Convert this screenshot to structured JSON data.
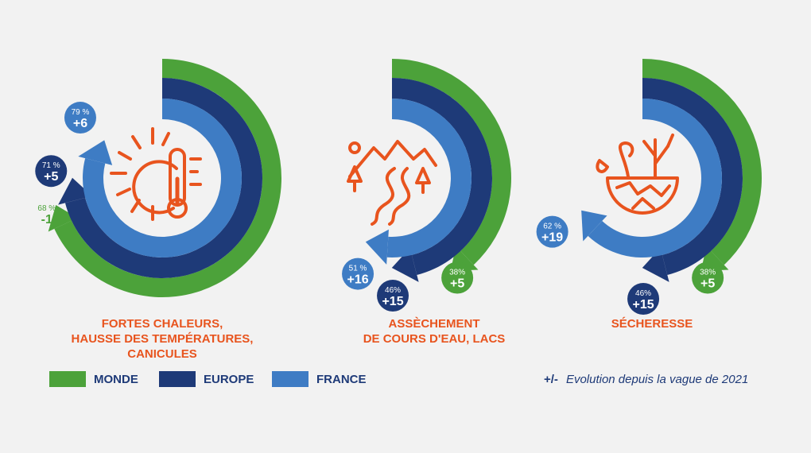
{
  "colors": {
    "monde": "#4ca23a",
    "europe": "#1e3a78",
    "france": "#3e7cc4",
    "accent": "#e8541e",
    "background": "#f2f2f2"
  },
  "chart_data": {
    "type": "radial-bar",
    "series_colors": [
      "#4ca23a",
      "#1e3a78",
      "#3e7cc4"
    ],
    "panels": [
      {
        "icon": "sun-thermometer-icon",
        "caption": [
          "FORTES CHALEURS,",
          "HAUSSE DES TEMPÉRATURES,",
          "CANICULES"
        ],
        "values": [
          {
            "series": "MONDE",
            "percent": 68,
            "percent_label": "68 %",
            "change": "-1"
          },
          {
            "series": "EUROPE",
            "percent": 71,
            "percent_label": "71 %",
            "change": "+5"
          },
          {
            "series": "FRANCE",
            "percent": 79,
            "percent_label": "79 %",
            "change": "+6"
          }
        ]
      },
      {
        "icon": "mountains-river-icon",
        "caption": [
          "ASSÈCHEMENT",
          "DE COURS D'EAU, LACS"
        ],
        "values": [
          {
            "series": "MONDE",
            "percent": 38,
            "percent_label": "38%",
            "change": "+5"
          },
          {
            "series": "EUROPE",
            "percent": 46,
            "percent_label": "46%",
            "change": "+15"
          },
          {
            "series": "FRANCE",
            "percent": 51,
            "percent_label": "51 %",
            "change": "+16"
          }
        ]
      },
      {
        "icon": "dry-land-icon",
        "caption": [
          "SÉCHERESSE"
        ],
        "values": [
          {
            "series": "MONDE",
            "percent": 38,
            "percent_label": "38%",
            "change": "+5"
          },
          {
            "series": "EUROPE",
            "percent": 46,
            "percent_label": "46%",
            "change": "+15"
          },
          {
            "series": "FRANCE",
            "percent": 62,
            "percent_label": "62 %",
            "change": "+19"
          }
        ]
      }
    ]
  },
  "legend": {
    "items": [
      {
        "label": "MONDE",
        "color": "#4ca23a"
      },
      {
        "label": "EUROPE",
        "color": "#1e3a78"
      },
      {
        "label": "FRANCE",
        "color": "#3e7cc4"
      }
    ],
    "note_symbol": "+/-",
    "note_text": "Evolution depuis la vague de 2021"
  }
}
